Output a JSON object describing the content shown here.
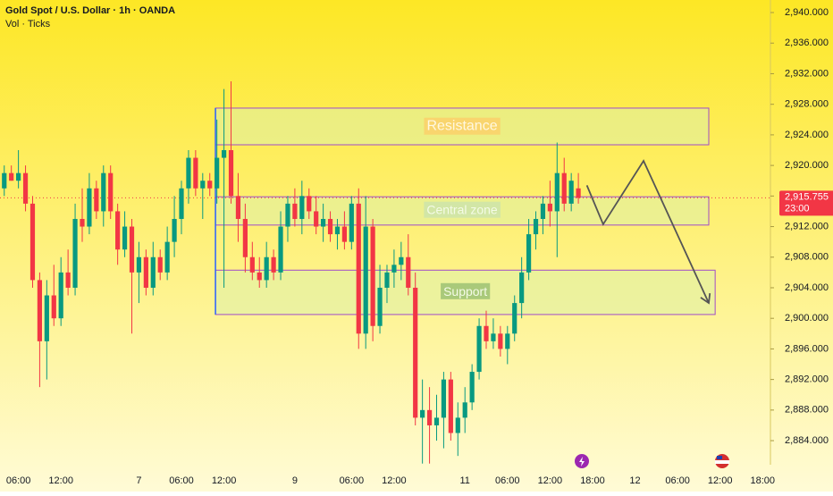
{
  "chart_data": {
    "type": "candlestick",
    "title": "Gold Spot / U.S. Dollar · 1h · OANDA",
    "subtitle": "Vol · Ticks",
    "up_color": "#089981",
    "down_color": "#f23645",
    "xlim": [
      -0.6,
      108.1
    ],
    "xticks": [
      {
        "value": 2,
        "label": "06:00"
      },
      {
        "value": 8,
        "label": "12:00"
      },
      {
        "value": 19,
        "label": "7"
      },
      {
        "value": 25,
        "label": "06:00"
      },
      {
        "value": 31,
        "label": "12:00"
      },
      {
        "value": 41,
        "label": "9"
      },
      {
        "value": 49,
        "label": "06:00"
      },
      {
        "value": 55,
        "label": "12:00"
      },
      {
        "value": 65,
        "label": "11"
      },
      {
        "value": 71,
        "label": "06:00"
      },
      {
        "value": 77,
        "label": "12:00"
      },
      {
        "value": 83,
        "label": "18:00"
      },
      {
        "value": 89,
        "label": "12"
      },
      {
        "value": 95,
        "label": "06:00"
      },
      {
        "value": 101,
        "label": "12:00"
      },
      {
        "value": 107,
        "label": "18:00"
      }
    ],
    "ylim": [
      2880.85,
      2941.64
    ],
    "yticks": [
      {
        "value": 2884,
        "label": "2,884.000"
      },
      {
        "value": 2888,
        "label": "2,888.000"
      },
      {
        "value": 2892,
        "label": "2,892.000"
      },
      {
        "value": 2896,
        "label": "2,896.000"
      },
      {
        "value": 2900,
        "label": "2,900.000"
      },
      {
        "value": 2904,
        "label": "2,904.000"
      },
      {
        "value": 2908,
        "label": "2,908.000"
      },
      {
        "value": 2912,
        "label": "2,912.000"
      },
      {
        "value": 2916,
        "label": "2,916.000"
      },
      {
        "value": 2920,
        "label": "2,920.000"
      },
      {
        "value": 2924,
        "label": "2,924.000"
      },
      {
        "value": 2928,
        "label": "2,928.000"
      },
      {
        "value": 2932,
        "label": "2,932.000"
      },
      {
        "value": 2936,
        "label": "2,936.000"
      },
      {
        "value": 2940,
        "label": "2,940.000"
      }
    ],
    "open": [
      2917,
      2919,
      2918,
      2919,
      2915,
      2905,
      2897,
      2903,
      2900,
      2906,
      2904,
      2913,
      2912,
      2917,
      2914,
      2919,
      2914,
      2909,
      2912,
      2906,
      2908,
      2904,
      2908,
      2906,
      2910,
      2913,
      2917,
      2921,
      2917,
      2918,
      2917,
      2921,
      2922,
      2916,
      2913,
      2908,
      2906,
      2905,
      2908,
      2906,
      2912,
      2915,
      2913,
      2916,
      2914,
      2912,
      2913,
      2911,
      2912,
      2910,
      2915,
      2898,
      2912,
      2899,
      2904,
      2906,
      2907,
      2908,
      2904,
      2887,
      2888,
      2886,
      2887,
      2892,
      2885,
      2887,
      2889,
      2893,
      2899,
      2897,
      2898,
      2896,
      2898,
      2902,
      2906,
      2911,
      2913,
      2915,
      2914,
      2919,
      2915,
      2917
    ],
    "high": [
      2920,
      2920,
      2922,
      2920,
      2916,
      2906,
      2905,
      2907,
      2908,
      2909,
      2915,
      2917,
      2919,
      2918,
      2920,
      2920,
      2915,
      2914,
      2913,
      2910,
      2909,
      2910,
      2909,
      2912,
      2916,
      2918,
      2922,
      2922,
      2919,
      2919,
      2926,
      2930,
      2931,
      2919,
      2915,
      2910,
      2908,
      2910,
      2909,
      2914,
      2916,
      2917,
      2918,
      2917,
      2916,
      2915,
      2914,
      2913,
      2914,
      2916,
      2917,
      2916,
      2913,
      2907,
      2907,
      2909,
      2910,
      2911,
      2906,
      2892,
      2891,
      2890,
      2893,
      2893,
      2889,
      2891,
      2894,
      2900,
      2901,
      2900,
      2899,
      2899,
      2903,
      2908,
      2913,
      2914,
      2916,
      2918,
      2923,
      2921,
      2919,
      2919
    ],
    "low": [
      2916,
      2918,
      2917,
      2914,
      2904,
      2891,
      2892,
      2899,
      2899,
      2903,
      2903,
      2910,
      2911,
      2913,
      2912,
      2913,
      2907,
      2908,
      2898,
      2902,
      2903,
      2903,
      2905,
      2905,
      2908,
      2911,
      2915,
      2916,
      2913,
      2916,
      2915,
      2904,
      2915,
      2910,
      2906,
      2905,
      2904,
      2904,
      2905,
      2905,
      2910,
      2912,
      2911,
      2913,
      2911,
      2910,
      2910,
      2909,
      2909,
      2909,
      2896,
      2896,
      2897,
      2898,
      2902,
      2904,
      2905,
      2903,
      2886,
      2881,
      2881,
      2884,
      2883,
      2884,
      2882,
      2885,
      2888,
      2892,
      2896,
      2896,
      2895,
      2894,
      2897,
      2900,
      2905,
      2909,
      2911,
      2912,
      2908,
      2914,
      2914,
      2915
    ],
    "close": [
      2919,
      2918,
      2919,
      2915,
      2905,
      2897,
      2903,
      2900,
      2906,
      2904,
      2913,
      2912,
      2917,
      2914,
      2919,
      2914,
      2909,
      2912,
      2906,
      2908,
      2904,
      2908,
      2906,
      2910,
      2913,
      2917,
      2921,
      2917,
      2918,
      2917,
      2921,
      2922,
      2916,
      2913,
      2908,
      2906,
      2905,
      2908,
      2906,
      2912,
      2915,
      2913,
      2916,
      2914,
      2912,
      2913,
      2911,
      2912,
      2910,
      2915,
      2898,
      2912,
      2899,
      2904,
      2906,
      2907,
      2908,
      2904,
      2887,
      2888,
      2886,
      2887,
      2892,
      2885,
      2887,
      2889,
      2893,
      2899,
      2897,
      2898,
      2896,
      2898,
      2902,
      2906,
      2911,
      2913,
      2915,
      2914,
      2919,
      2915,
      2918,
      2915.755
    ],
    "last_price": {
      "value": 2915.755,
      "label": "2,915.755"
    },
    "countdown": "23:00",
    "zones": [
      {
        "label": "Resistance",
        "top": 2927.5,
        "bottom": 2922.7,
        "start": 29.8,
        "end": 99.4
      },
      {
        "label": "Central zone",
        "top": 2915.9,
        "bottom": 2912.2,
        "start": 29.8,
        "end": 99.4
      },
      {
        "label": "Support",
        "top": 2906.3,
        "bottom": 2900.5,
        "start": 29.8,
        "end": 100.3
      }
    ],
    "projection": {
      "x": [
        82.2,
        84.5,
        90.2,
        99.4
      ],
      "y": [
        2917.4,
        2912.3,
        2920.6,
        2902.0
      ]
    }
  }
}
